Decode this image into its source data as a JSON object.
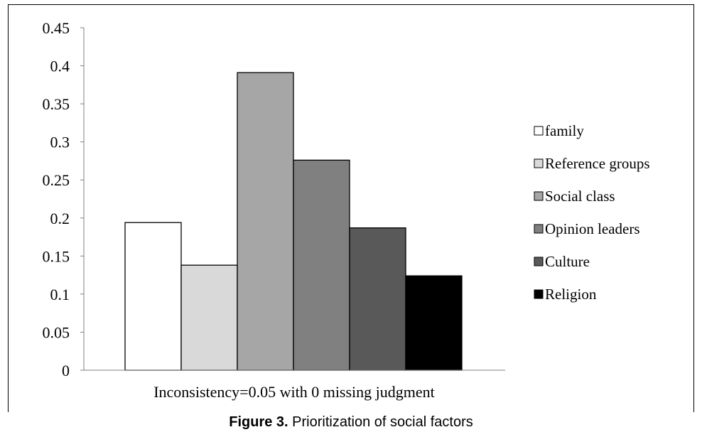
{
  "figure": {
    "number_label": "Figure 3.",
    "caption_text": " Prioritization of social factors"
  },
  "chart_data": {
    "type": "bar",
    "title": "",
    "xlabel": "Inconsistency=0.05 with 0 missing judgment",
    "ylabel": "",
    "ylim": [
      0,
      0.45
    ],
    "yticks": [
      "0",
      "0.05",
      "0.1",
      "0.15",
      "0.2",
      "0.25",
      "0.3",
      "0.35",
      "0.4",
      "0.45"
    ],
    "grid": false,
    "legend_position": "right",
    "series": [
      {
        "name": "family",
        "values": [
          0.194
        ],
        "color": "#ffffff"
      },
      {
        "name": "Reference groups",
        "values": [
          0.138
        ],
        "color": "#d9d9d9"
      },
      {
        "name": "Social class",
        "values": [
          0.391
        ],
        "color": "#a6a6a6"
      },
      {
        "name": "Opinion leaders",
        "values": [
          0.276
        ],
        "color": "#808080"
      },
      {
        "name": "Culture",
        "values": [
          0.187
        ],
        "color": "#595959"
      },
      {
        "name": "Religion",
        "values": [
          0.124
        ],
        "color": "#000000"
      }
    ]
  }
}
